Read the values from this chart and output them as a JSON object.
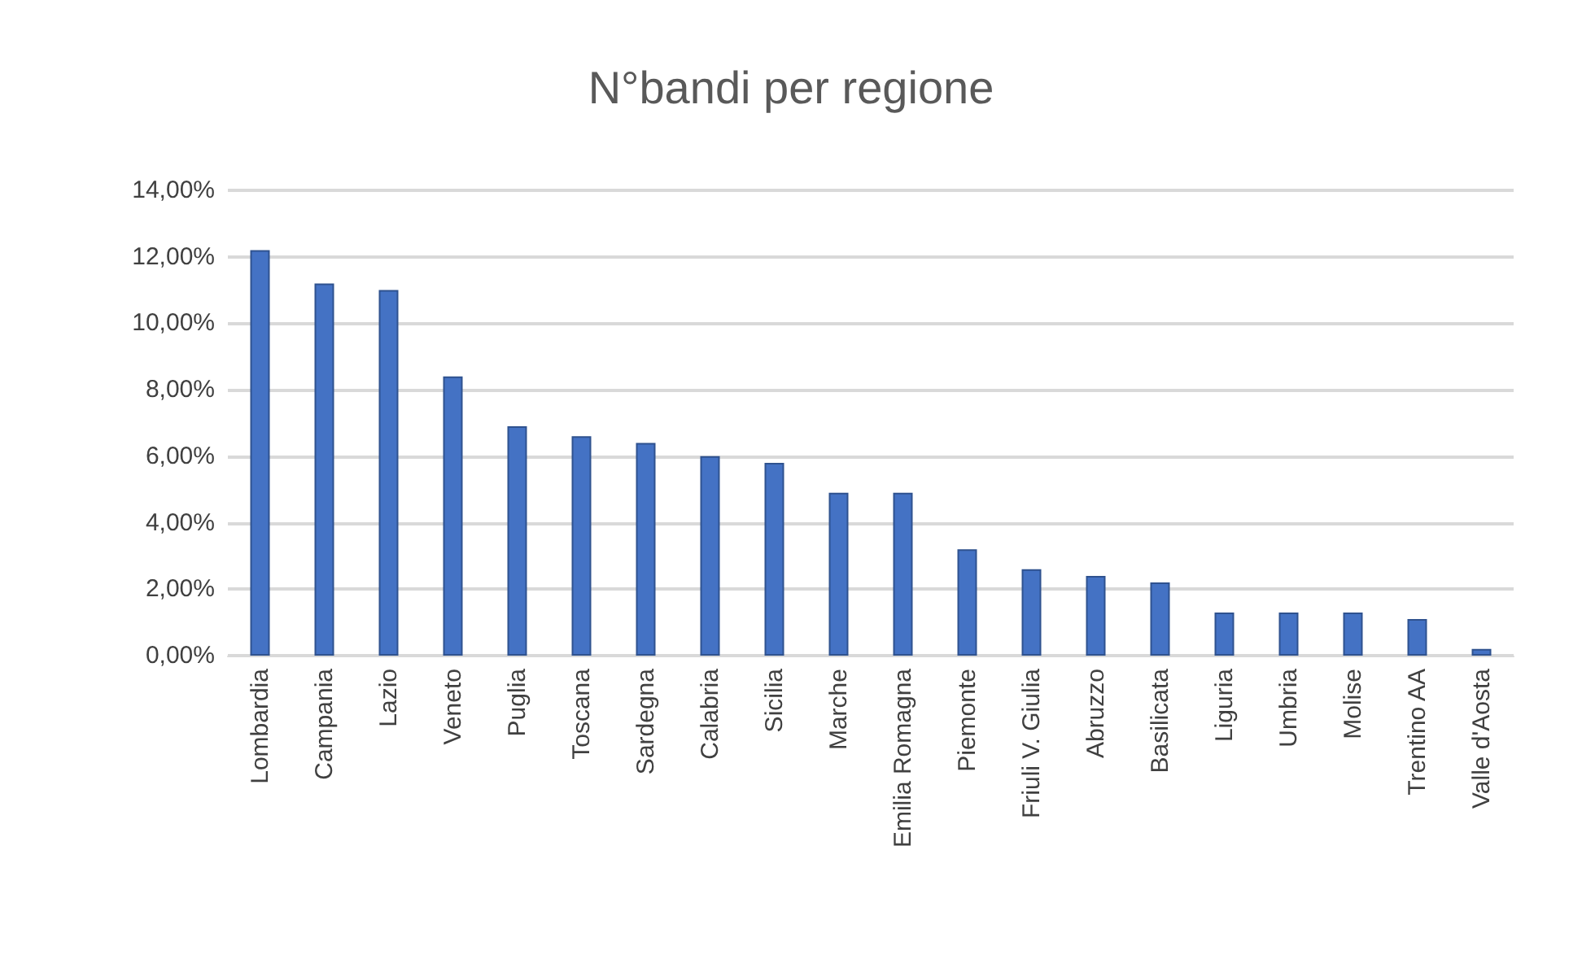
{
  "chart_data": {
    "type": "bar",
    "title": "N°bandi per regione",
    "categories": [
      "Lombardia",
      "Campania",
      "Lazio",
      "Veneto",
      "Puglia",
      "Toscana",
      "Sardegna",
      "Calabria",
      "Sicilia",
      "Marche",
      "Emilia Romagna",
      "Piemonte",
      "Friuli V. Giulia",
      "Abruzzo",
      "Basilicata",
      "Liguria",
      "Umbria",
      "Molise",
      "Trentino AA",
      "Valle d'Aosta"
    ],
    "values": [
      12.2,
      11.2,
      11.0,
      8.4,
      6.9,
      6.6,
      6.4,
      6.0,
      5.8,
      4.9,
      4.9,
      3.2,
      2.6,
      2.4,
      2.2,
      1.3,
      1.3,
      1.3,
      1.1,
      0.2
    ],
    "color": "#4472c4",
    "ylim": [
      0,
      14
    ],
    "yticks": [
      {
        "value": 0,
        "label": "0,00%"
      },
      {
        "value": 2,
        "label": "2,00%"
      },
      {
        "value": 4,
        "label": "4,00%"
      },
      {
        "value": 6,
        "label": "6,00%"
      },
      {
        "value": 8,
        "label": "8,00%"
      },
      {
        "value": 10,
        "label": "10,00%"
      },
      {
        "value": 12,
        "label": "12,00%"
      },
      {
        "value": 14,
        "label": "14,00%"
      }
    ],
    "grid": true
  }
}
